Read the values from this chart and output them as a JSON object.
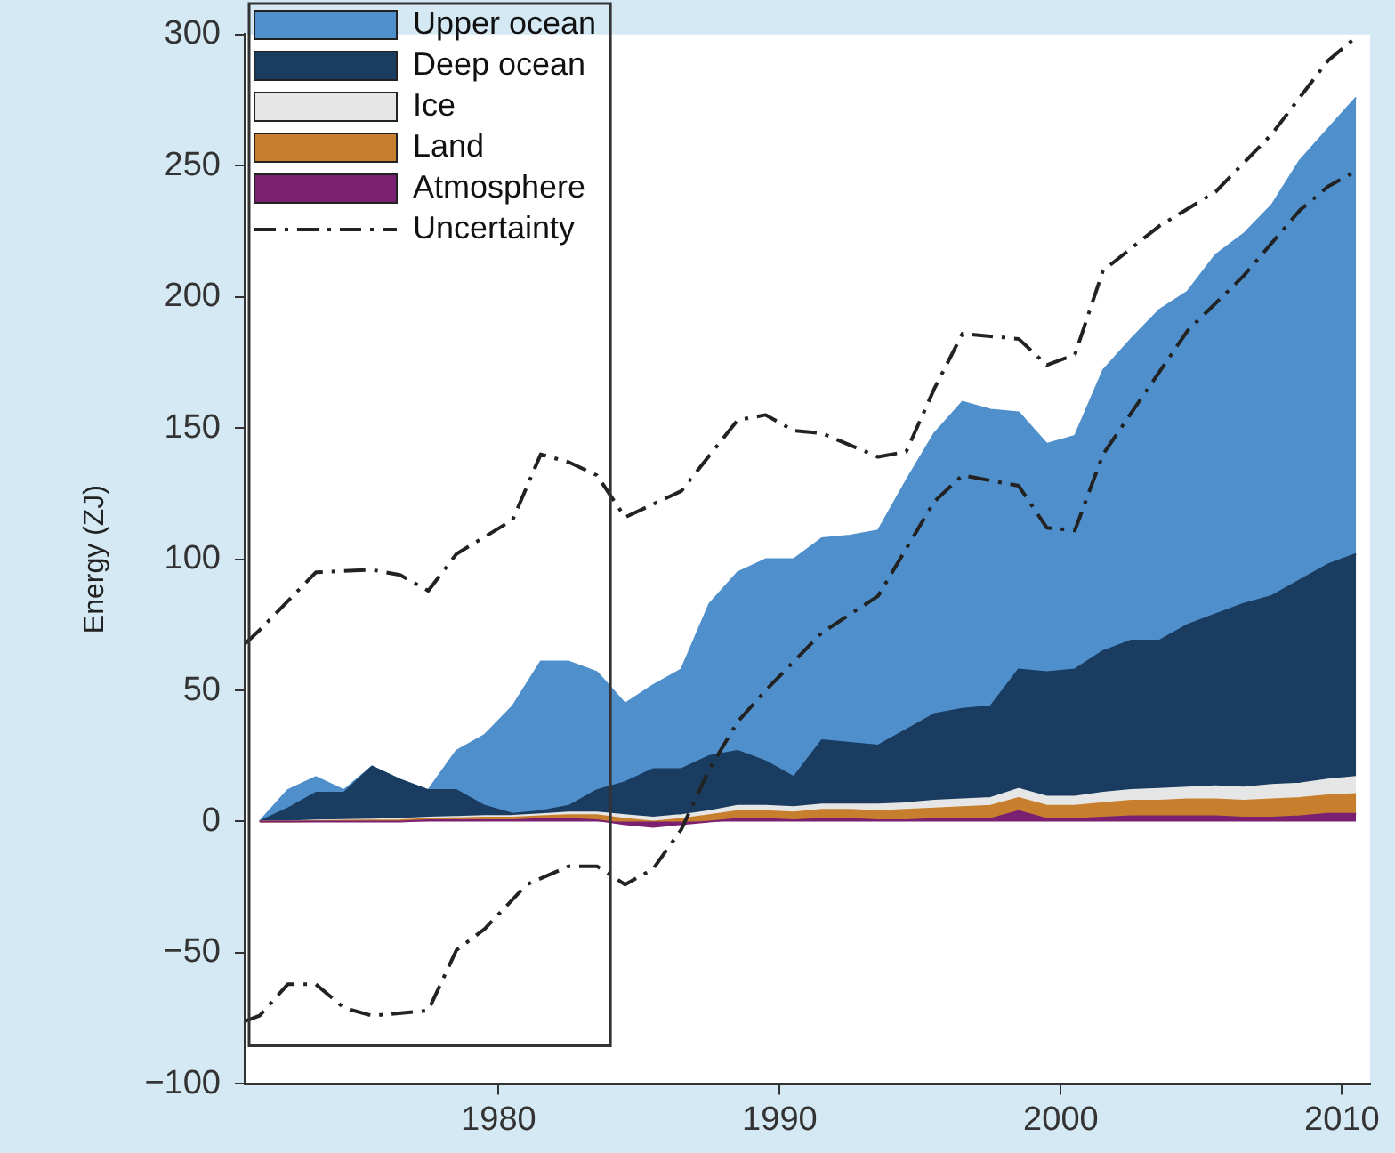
{
  "chart_data": {
    "type": "area",
    "ylabel": "Energy (ZJ)",
    "stacked": true,
    "legend": "top left",
    "grid": false,
    "marker": "none",
    "xlim": [
      1971,
      2011
    ],
    "xticks": [
      1980,
      1990,
      2000,
      2010
    ],
    "ylim": [
      -100,
      300
    ],
    "yticks": [
      -100,
      -50,
      0,
      50,
      100,
      150,
      200,
      250,
      300
    ],
    "series": [
      {
        "name": "Atmosphere",
        "color": "#7b2070",
        "x": [
          1971.5,
          1972.5,
          1973.5,
          1974.5,
          1975.5,
          1976.5,
          1977.5,
          1978.5,
          1979.5,
          1980.5,
          1981.5,
          1982.5,
          1983.5,
          1984.5,
          1985.5,
          1986.5,
          1987.5,
          1988.5,
          1989.5,
          1990.5,
          1991.5,
          1992.5,
          1993.5,
          1994.5,
          1995.5,
          1996.5,
          1997.5,
          1998.5,
          1999.5,
          2000.5,
          2001.5,
          2002.5,
          2003.5,
          2004.5,
          2005.5,
          2006.5,
          2007.5,
          2008.5,
          2009.5,
          2010.5
        ],
        "values": [
          0,
          0,
          0,
          0,
          0,
          0,
          0.5,
          0.5,
          0.5,
          0.5,
          1,
          1,
          0.5,
          -1,
          -2,
          -1,
          0,
          1,
          1,
          0.5,
          1,
          1,
          0.5,
          0.5,
          1,
          1,
          1,
          4,
          1,
          1,
          1.5,
          2,
          2,
          2,
          2,
          1.5,
          1.5,
          2,
          3,
          3
        ]
      },
      {
        "name": "Land",
        "color": "#c77f2e",
        "x": [
          1971.5,
          1972.5,
          1973.5,
          1974.5,
          1975.5,
          1976.5,
          1977.5,
          1978.5,
          1979.5,
          1980.5,
          1981.5,
          1982.5,
          1983.5,
          1984.5,
          1985.5,
          1986.5,
          1987.5,
          1988.5,
          1989.5,
          1990.5,
          1991.5,
          1992.5,
          1993.5,
          1994.5,
          1995.5,
          1996.5,
          1997.5,
          1998.5,
          1999.5,
          2000.5,
          2001.5,
          2002.5,
          2003.5,
          2004.5,
          2005.5,
          2006.5,
          2007.5,
          2008.5,
          2009.5,
          2010.5
        ],
        "values": [
          0,
          0,
          0.2,
          0.3,
          0.4,
          0.5,
          0.5,
          0.8,
          1,
          1,
          1,
          1.5,
          2,
          2,
          2,
          2,
          2.5,
          3,
          3,
          3,
          3.5,
          3.5,
          3.5,
          4,
          4,
          4.5,
          5,
          5,
          5,
          5,
          5.5,
          6,
          6,
          6.5,
          6.5,
          6.5,
          7,
          7,
          7,
          7.5
        ]
      },
      {
        "name": "Ice",
        "color": "#e6e6e6",
        "x": [
          1971.5,
          1972.5,
          1973.5,
          1974.5,
          1975.5,
          1976.5,
          1977.5,
          1978.5,
          1979.5,
          1980.5,
          1981.5,
          1982.5,
          1983.5,
          1984.5,
          1985.5,
          1986.5,
          1987.5,
          1988.5,
          1989.5,
          1990.5,
          1991.5,
          1992.5,
          1993.5,
          1994.5,
          1995.5,
          1996.5,
          1997.5,
          1998.5,
          1999.5,
          2000.5,
          2001.5,
          2002.5,
          2003.5,
          2004.5,
          2005.5,
          2006.5,
          2007.5,
          2008.5,
          2009.5,
          2010.5
        ],
        "values": [
          0,
          0,
          0.2,
          0.3,
          0.4,
          0.5,
          0.5,
          0.5,
          0.6,
          0.7,
          0.8,
          1,
          1,
          1.5,
          1.5,
          1.5,
          1.5,
          2,
          2,
          2,
          2,
          2,
          2.5,
          2.5,
          3,
          3,
          3,
          3.5,
          3.5,
          3.5,
          4,
          4,
          4.5,
          4.5,
          5,
          5,
          5.5,
          5.5,
          6,
          6.5
        ]
      },
      {
        "name": "Deep ocean",
        "color": "#1a3c61",
        "x": [
          1971.5,
          1972.5,
          1973.5,
          1974.5,
          1975.5,
          1976.5,
          1977.5,
          1978.5,
          1979.5,
          1980.5,
          1981.5,
          1982.5,
          1983.5,
          1984.5,
          1985.5,
          1986.5,
          1987.5,
          1988.5,
          1989.5,
          1990.5,
          1991.5,
          1992.5,
          1993.5,
          1994.5,
          1995.5,
          1996.5,
          1997.5,
          1998.5,
          1999.5,
          2000.5,
          2001.5,
          2002.5,
          2003.5,
          2004.5,
          2005.5,
          2006.5,
          2007.5,
          2008.5,
          2009.5,
          2010.5
        ],
        "values": [
          0,
          5,
          10.6,
          10.4,
          20.2,
          15,
          10.5,
          10.2,
          3.9,
          0.8,
          1.2,
          2.5,
          8.5,
          12.5,
          18.5,
          17.5,
          21,
          21,
          17,
          11.5,
          24.5,
          23.5,
          22.5,
          28,
          33,
          34.5,
          35,
          45.5,
          47.5,
          48.5,
          54,
          57,
          56.5,
          62,
          65.5,
          70,
          72,
          77.5,
          82,
          85
        ]
      },
      {
        "name": "Upper ocean",
        "color": "#4f8fcb",
        "x": [
          1971.5,
          1972.5,
          1973.5,
          1974.5,
          1975.5,
          1976.5,
          1977.5,
          1978.5,
          1979.5,
          1980.5,
          1981.5,
          1982.5,
          1983.5,
          1984.5,
          1985.5,
          1986.5,
          1987.5,
          1988.5,
          1989.5,
          1990.5,
          1991.5,
          1992.5,
          1993.5,
          1994.5,
          1995.5,
          1996.5,
          1997.5,
          1998.5,
          1999.5,
          2000.5,
          2001.5,
          2002.5,
          2003.5,
          2004.5,
          2005.5,
          2006.5,
          2007.5,
          2008.5,
          2009.5,
          2010.5
        ],
        "values": [
          0,
          7,
          6,
          1,
          0,
          0,
          0,
          15,
          27,
          41,
          57,
          55,
          45,
          30,
          32,
          38,
          58,
          68,
          77,
          83,
          77,
          79,
          82,
          95,
          107,
          117,
          113,
          98,
          87,
          89,
          107,
          115,
          126,
          127,
          137,
          141,
          149,
          160,
          166,
          174
        ]
      },
      {
        "name": "Uncertainty",
        "type": "line",
        "line_style": "dashed",
        "color": "#222222",
        "x": [
          1971,
          1971.5,
          1973.5,
          1975.5,
          1976.5,
          1977.5,
          1978.5,
          1980.5,
          1981.5,
          1982.5,
          1983.5,
          1984.5,
          1986.5,
          1988.5,
          1989.5,
          1990.5,
          1991.5,
          1993.5,
          1994.5,
          1995.5,
          1996.5,
          1997.5,
          1998.5,
          1999.5,
          2000.5,
          2001.5,
          2003.5,
          2005.5,
          2007.5,
          2009.5,
          2010.5
        ],
        "values": [
          68,
          73,
          95,
          96,
          94,
          88,
          102,
          115,
          140,
          137,
          132,
          116,
          126,
          153,
          155,
          149,
          148,
          139,
          141,
          165,
          186,
          185,
          184,
          174,
          178,
          210,
          227,
          240,
          262,
          290,
          299
        ]
      },
      {
        "type": "line",
        "line_style": "dashed",
        "color": "#222222",
        "x": [
          1971,
          1971.5,
          1972.5,
          1973.5,
          1974.5,
          1975.5,
          1977.5,
          1978.5,
          1979.5,
          1981,
          1982.5,
          1983.5,
          1984.5,
          1985.5,
          1986.5,
          1987.5,
          1988.5,
          1989.5,
          1991.5,
          1993.5,
          1995.5,
          1996.5,
          1998.5,
          1999.5,
          2000.5,
          2001.5,
          2004.5,
          2006.5,
          2008.5,
          2009.5,
          2010.5
        ],
        "values": [
          -76,
          -74,
          -62,
          -62,
          -71,
          -74,
          -72,
          -49,
          -41,
          -24,
          -17,
          -17,
          -24,
          -18,
          -3,
          20,
          38,
          50,
          72,
          86,
          122,
          132,
          128,
          112,
          111,
          140,
          187,
          208,
          233,
          242,
          248
        ]
      }
    ]
  }
}
